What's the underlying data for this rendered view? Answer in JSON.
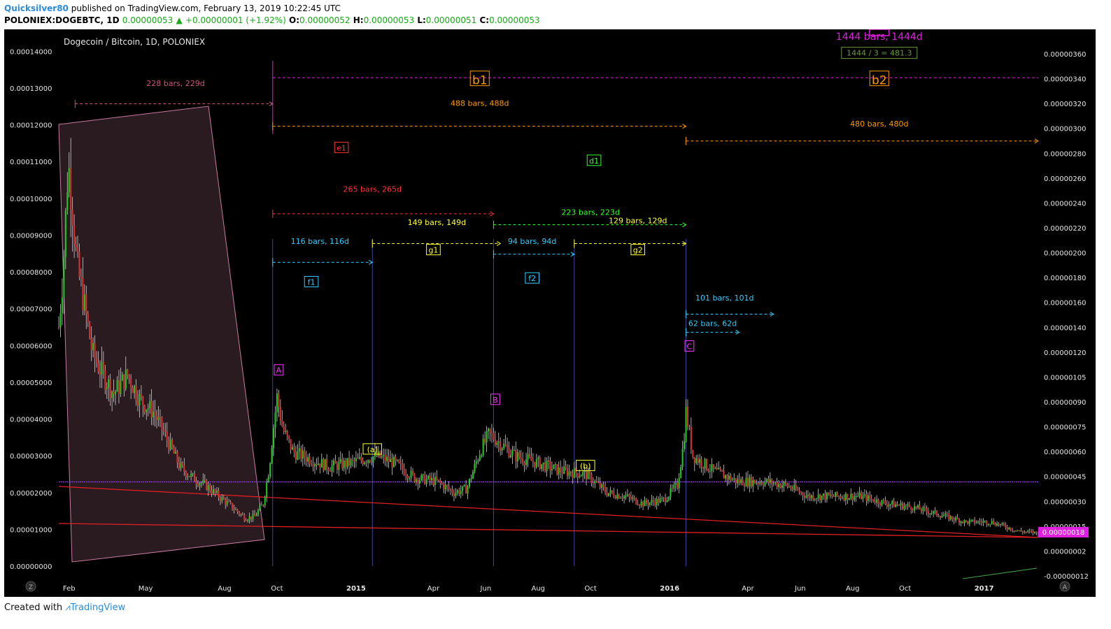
{
  "header": {
    "author": "Quicksilver80",
    "published": "published on TradingView.com, February 13, 2019 10:22:45 UTC",
    "symbol": "POLONIEX:DOGEBTC, 1D",
    "last": "0.00000053",
    "change": "+0.00000001 (+1.92%)",
    "o_label": "O:",
    "o_value": "0.00000052",
    "h_label": "H:",
    "h_value": "0.00000053",
    "l_label": "L:",
    "l_value": "0.00000051",
    "c_label": "C:",
    "c_value": "0.00000053"
  },
  "footer": {
    "created_with": "Created with",
    "brand": "TradingView"
  },
  "chart_data": {
    "type": "candlestick",
    "title": "Dogecoin / Bitcoin, 1D, POLONIEX",
    "colors": {
      "background": "#000000",
      "up": "#22cc22",
      "down": "#e03030",
      "wick": "#d0d0d0",
      "accent": "#e020e0"
    },
    "x_ticks": [
      "Feb",
      "May",
      "Aug",
      "Oct",
      "2015",
      "Apr",
      "Jun",
      "Aug",
      "Oct",
      "2016",
      "Apr",
      "Jun",
      "Aug",
      "Oct",
      "2017"
    ],
    "x_tick_dates": [
      "2014-02-01",
      "2014-05-01",
      "2014-08-01",
      "2014-10-01",
      "2015-01-01",
      "2015-04-01",
      "2015-06-01",
      "2015-08-01",
      "2015-10-01",
      "2016-01-01",
      "2016-04-01",
      "2016-06-01",
      "2016-08-01",
      "2016-10-01",
      "2017-01-01"
    ],
    "x_range": [
      "2014-01-20",
      "2017-03-05"
    ],
    "left_axis": {
      "ticks": [
        "0.00014000",
        "0.00013000",
        "0.00012000",
        "0.00011000",
        "0.00010000",
        "0.00009000",
        "0.00008000",
        "0.00007000",
        "0.00006000",
        "0.00005000",
        "0.00004000",
        "0.00003000",
        "0.00002000",
        "0.00001000",
        "0.00000000"
      ],
      "range": [
        0,
        0.000145
      ]
    },
    "right_axis": {
      "ticks": [
        "0.00000360",
        "0.00000340",
        "0.00000320",
        "0.00000300",
        "0.00000280",
        "0.00000260",
        "0.00000240",
        "0.00000220",
        "0.00000200",
        "0.00000180",
        "0.00000160",
        "0.00000140",
        "0.00000120",
        "0.00000105",
        "0.00000090",
        "0.00000075",
        "0.00000060",
        "0.00000045",
        "0.00000030",
        "0.00000015",
        "0.00000002",
        "-0.00000012"
      ],
      "last_price_label": "0.00000018"
    },
    "price_path": [
      [
        "2014-01-20",
        6.5e-05
      ],
      [
        "2014-01-25",
        8e-05
      ],
      [
        "2014-01-31",
        0.00011
      ],
      [
        "2014-02-04",
        0.0001
      ],
      [
        "2014-02-10",
        8.2e-05
      ],
      [
        "2014-02-18",
        7.2e-05
      ],
      [
        "2014-02-28",
        5.8e-05
      ],
      [
        "2014-03-10",
        5.3e-05
      ],
      [
        "2014-03-25",
        4.7e-05
      ],
      [
        "2014-04-10",
        5.2e-05
      ],
      [
        "2014-04-25",
        4.5e-05
      ],
      [
        "2014-05-10",
        4.2e-05
      ],
      [
        "2014-05-25",
        3.5e-05
      ],
      [
        "2014-06-10",
        2.7e-05
      ],
      [
        "2014-06-25",
        2.4e-05
      ],
      [
        "2014-07-10",
        2.2e-05
      ],
      [
        "2014-07-25",
        1.9e-05
      ],
      [
        "2014-08-10",
        1.6e-05
      ],
      [
        "2014-08-25",
        1.3e-05
      ],
      [
        "2014-09-05",
        1.35e-05
      ],
      [
        "2014-09-15",
        1.7e-05
      ],
      [
        "2014-09-22",
        2.7e-05
      ],
      [
        "2014-09-27",
        3.8e-05
      ],
      [
        "2014-10-01",
        4.6e-05
      ],
      [
        "2014-10-08",
        3.7e-05
      ],
      [
        "2014-10-20",
        3.1e-05
      ],
      [
        "2014-11-10",
        2.9e-05
      ],
      [
        "2014-12-01",
        2.7e-05
      ],
      [
        "2014-12-25",
        2.8e-05
      ],
      [
        "2015-01-25",
        3e-05
      ],
      [
        "2015-02-15",
        2.8e-05
      ],
      [
        "2015-03-10",
        2.4e-05
      ],
      [
        "2015-04-05",
        2.3e-05
      ],
      [
        "2015-04-25",
        2e-05
      ],
      [
        "2015-05-10",
        2.1e-05
      ],
      [
        "2015-05-25",
        3.1e-05
      ],
      [
        "2015-06-05",
        3.6e-05
      ],
      [
        "2015-06-15",
        3.4e-05
      ],
      [
        "2015-07-05",
        3e-05
      ],
      [
        "2015-08-01",
        2.8e-05
      ],
      [
        "2015-08-25",
        2.6e-05
      ],
      [
        "2015-09-25",
        2.5e-05
      ],
      [
        "2015-10-20",
        2e-05
      ],
      [
        "2015-11-10",
        1.9e-05
      ],
      [
        "2015-12-01",
        1.7e-05
      ],
      [
        "2015-12-25",
        1.8e-05
      ],
      [
        "2016-01-10",
        2.2e-05
      ],
      [
        "2016-01-17",
        3.3e-05
      ],
      [
        "2016-01-20",
        4.2e-05
      ],
      [
        "2016-01-28",
        3e-05
      ],
      [
        "2016-02-20",
        2.6e-05
      ],
      [
        "2016-03-20",
        2.3e-05
      ],
      [
        "2016-04-20",
        2.3e-05
      ],
      [
        "2016-05-15",
        2.2e-05
      ],
      [
        "2016-06-10",
        1.9e-05
      ],
      [
        "2016-07-10",
        1.9e-05
      ],
      [
        "2016-08-10",
        1.9e-05
      ],
      [
        "2016-09-10",
        1.7e-05
      ],
      [
        "2016-10-10",
        1.6e-05
      ],
      [
        "2016-11-10",
        1.4e-05
      ],
      [
        "2016-12-10",
        1.2e-05
      ],
      [
        "2017-01-10",
        1.2e-05
      ],
      [
        "2017-02-10",
        9.5e-06
      ],
      [
        "2017-03-05",
        9e-06
      ]
    ],
    "horizontal_line": {
      "value": 2.29e-05,
      "color": "#9a33ff"
    },
    "wave_labels": [
      {
        "text": "A",
        "date": "2014-10-03",
        "value": 5.25e-05,
        "color": "#ff33ff"
      },
      {
        "text": "B",
        "date": "2015-06-12",
        "value": 4.45e-05,
        "color": "#ff33ff"
      },
      {
        "text": "C",
        "date": "2016-01-24",
        "value": 5.9e-05,
        "color": "#ff33ff"
      },
      {
        "text": "(a)",
        "date": "2015-01-20",
        "value": 3.1e-05,
        "color": "#ffff33"
      },
      {
        "text": "(b)",
        "date": "2015-09-25",
        "value": 2.65e-05,
        "color": "#ffff33"
      },
      {
        "text": "b1",
        "value": 0.000131,
        "date": "2015-05-25",
        "color": "#ff9900"
      },
      {
        "text": "b2",
        "value": 0.000131,
        "date": "2016-09-01",
        "color": "#ff9900"
      },
      {
        "text": "e1",
        "value": 0.000113,
        "date": "2014-12-15",
        "color": "#ff3333"
      },
      {
        "text": "d1",
        "value": 0.0001095,
        "date": "2015-10-05",
        "color": "#33ff33"
      },
      {
        "text": "f1",
        "value": 7.65e-05,
        "date": "2014-11-10",
        "color": "#33ccff"
      },
      {
        "text": "f2",
        "value": 7.75e-05,
        "date": "2015-07-25",
        "color": "#33ccff"
      },
      {
        "text": "g1",
        "value": 8.52e-05,
        "date": "2015-04-01",
        "color": "#ffff33"
      },
      {
        "text": "g2",
        "value": 8.52e-05,
        "date": "2015-11-25",
        "color": "#ffff33"
      }
    ],
    "ranges": [
      {
        "text": "228 bars, 229d",
        "from": "2014-02-08",
        "to": "2014-09-26",
        "value": 0.0001257,
        "label_value": 0.0001306,
        "color": "#cc5577",
        "label_date": "2014-06-05"
      },
      {
        "text": "488 bars, 488d",
        "from": "2014-09-26",
        "to": "2016-01-20",
        "value": 0.0001196,
        "label_value": 0.0001251,
        "color": "#ff9900",
        "label_date": "2015-05-25"
      },
      {
        "text": "480 bars, 480d",
        "from": "2016-01-20",
        "to": "2017-03-05",
        "value": 0.0001156,
        "label_value": 0.0001195,
        "color": "#ff9900",
        "label_date": "2016-09-01"
      },
      {
        "text": "265 bars, 265d",
        "from": "2014-09-26",
        "to": "2015-06-10",
        "value": 9.58e-05,
        "label_value": 0.0001018,
        "color": "#ff3333",
        "label_date": "2015-01-20"
      },
      {
        "text": "223 bars, 223d",
        "from": "2015-06-10",
        "to": "2016-01-20",
        "value": 9.28e-05,
        "label_value": 9.55e-05,
        "color": "#33ff33",
        "label_date": "2015-10-01"
      },
      {
        "text": "116 bars, 116d",
        "from": "2014-09-26",
        "to": "2015-01-20",
        "value": 8.26e-05,
        "label_value": 8.76e-05,
        "color": "#33ccff",
        "label_date": "2014-11-20"
      },
      {
        "text": "149 bars, 149d",
        "from": "2015-01-20",
        "to": "2015-06-18",
        "value": 8.77e-05,
        "label_value": 9.27e-05,
        "color": "#ffff33",
        "label_date": "2015-04-05"
      },
      {
        "text": "94 bars, 94d",
        "from": "2015-06-10",
        "to": "2015-09-12",
        "value": 8.48e-05,
        "label_value": 8.76e-05,
        "color": "#33ccff",
        "label_date": "2015-07-25"
      },
      {
        "text": "129 bars, 129d",
        "from": "2015-09-12",
        "to": "2016-01-20",
        "value": 8.77e-05,
        "label_value": 9.32e-05,
        "color": "#ffff33",
        "label_date": "2015-11-25"
      },
      {
        "text": "101 bars, 101d",
        "from": "2016-01-20",
        "to": "2016-05-01",
        "value": 6.85e-05,
        "label_value": 7.22e-05,
        "color": "#33ccff",
        "label_date": "2016-03-05"
      },
      {
        "text": "62 bars, 62d",
        "from": "2016-01-20",
        "to": "2016-03-22",
        "value": 6.36e-05,
        "label_value": 6.53e-05,
        "color": "#33ccff",
        "label_date": "2016-02-20"
      }
    ],
    "top_range": {
      "text": "1444 bars, 1444d",
      "date": "2016-09-01",
      "value": 0.0001431,
      "color": "#e020e0"
    },
    "note": {
      "text": "1444 / 3 = 481.3",
      "date": "2016-09-01",
      "value": 0.0001388,
      "color": "#6a9a3a"
    },
    "reference_date_lines": [
      "2014-09-26",
      "2015-01-20",
      "2015-06-10",
      "2015-09-12",
      "2016-01-20"
    ],
    "top_dashed_level": 0.0001328
  }
}
